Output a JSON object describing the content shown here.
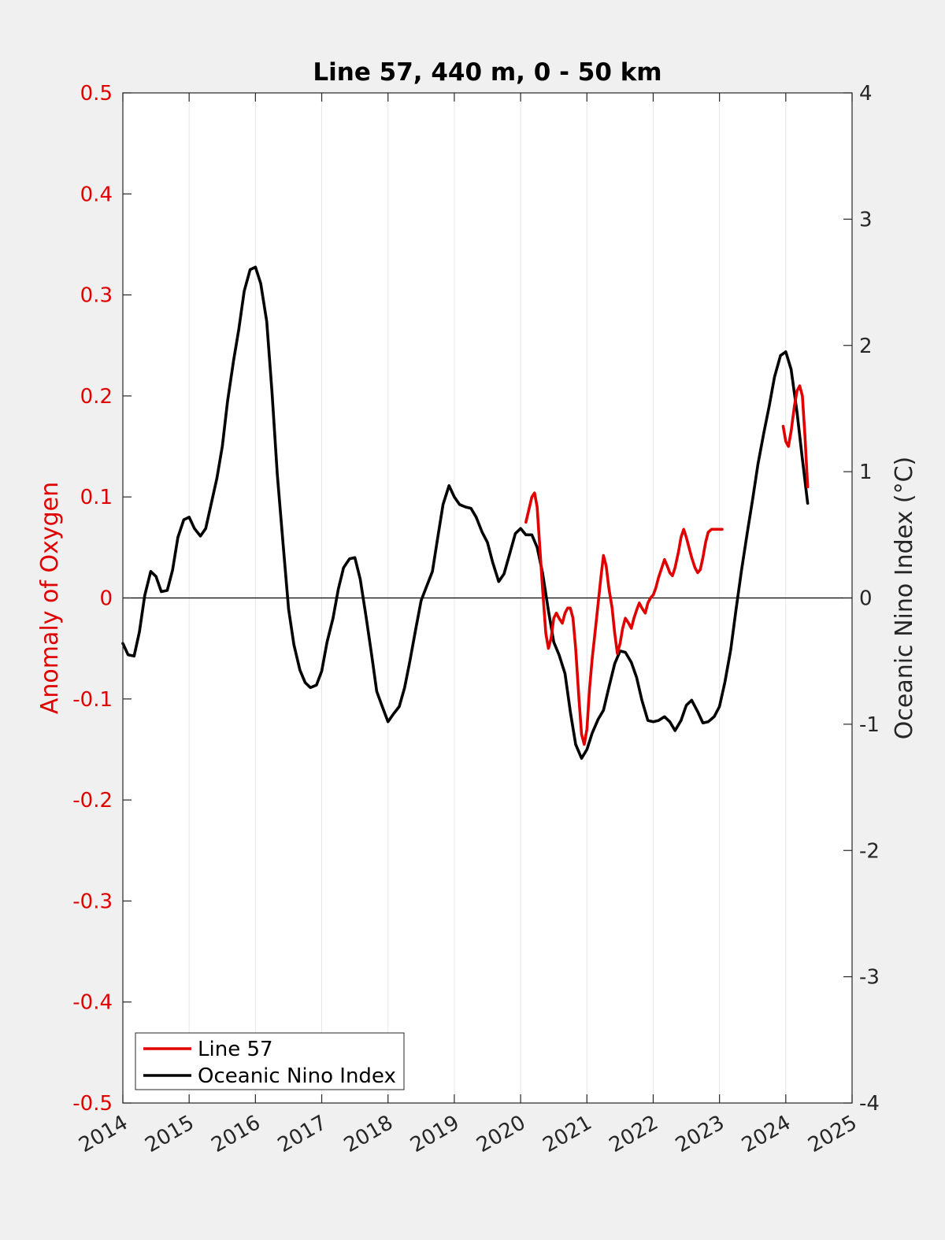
{
  "chart_data": {
    "type": "line",
    "title": "Line 57, 440 m, 0 - 50 km",
    "ylabel_left": "Anomaly of Oxygen",
    "ylabel_right": "Oceanic Nino Index (°C)",
    "xlim": [
      2014,
      2025
    ],
    "ylim_left": [
      -0.5,
      0.5
    ],
    "ylim_right": [
      -4,
      4
    ],
    "x_ticks": [
      "2014",
      "2015",
      "2016",
      "2017",
      "2018",
      "2019",
      "2020",
      "2021",
      "2022",
      "2023",
      "2024",
      "2025"
    ],
    "y_ticks_left": [
      "-0.5",
      "-0.4",
      "-0.3",
      "-0.2",
      "-0.1",
      "0",
      "0.1",
      "0.2",
      "0.3",
      "0.4",
      "0.5"
    ],
    "y_ticks_right": [
      "-4",
      "-3",
      "-2",
      "-1",
      "0",
      "1",
      "2",
      "3",
      "4"
    ],
    "grid": "vertical",
    "legend_position": "bottom-left",
    "colors": {
      "line57": "#e00000",
      "oni": "#000000",
      "left_axis": "#e00000"
    },
    "series": [
      {
        "name": "Line 57",
        "axis": "left",
        "color": "#e00000",
        "segments": [
          {
            "x": [
              2020.08,
              2020.17,
              2020.21,
              2020.25,
              2020.29,
              2020.33,
              2020.38,
              2020.42,
              2020.46,
              2020.5,
              2020.54,
              2020.58,
              2020.63,
              2020.67,
              2020.71,
              2020.75,
              2020.79,
              2020.83,
              2020.88,
              2020.92,
              2020.96,
              2021.0,
              2021.04,
              2021.08,
              2021.13,
              2021.17,
              2021.21,
              2021.25,
              2021.29,
              2021.33,
              2021.38,
              2021.42,
              2021.46,
              2021.5,
              2021.54,
              2021.58,
              2021.63,
              2021.67,
              2021.71,
              2021.75,
              2021.79,
              2021.83,
              2021.88,
              2021.92,
              2021.96,
              2022.0,
              2022.04,
              2022.08,
              2022.13,
              2022.17,
              2022.21,
              2022.25,
              2022.29,
              2022.33,
              2022.38,
              2022.42,
              2022.46,
              2022.5,
              2022.54,
              2022.58,
              2022.63,
              2022.67,
              2022.71,
              2022.75,
              2022.79,
              2022.83,
              2022.88,
              2022.92,
              2022.96,
              2023.0,
              2023.04
            ],
            "y": [
              0.075,
              0.1,
              0.104,
              0.09,
              0.05,
              0.01,
              -0.035,
              -0.05,
              -0.04,
              -0.02,
              -0.015,
              -0.02,
              -0.025,
              -0.015,
              -0.01,
              -0.01,
              -0.02,
              -0.05,
              -0.1,
              -0.135,
              -0.145,
              -0.13,
              -0.09,
              -0.06,
              -0.03,
              -0.005,
              0.02,
              0.042,
              0.032,
              0.01,
              -0.01,
              -0.035,
              -0.055,
              -0.045,
              -0.03,
              -0.02,
              -0.025,
              -0.03,
              -0.02,
              -0.012,
              -0.005,
              -0.01,
              -0.015,
              -0.005,
              0.0,
              0.003,
              0.01,
              0.02,
              0.03,
              0.038,
              0.032,
              0.025,
              0.022,
              0.03,
              0.045,
              0.06,
              0.068,
              0.06,
              0.05,
              0.04,
              0.03,
              0.025,
              0.028,
              0.04,
              0.055,
              0.065,
              0.068,
              0.068,
              0.068,
              0.068,
              0.068
            ]
          },
          {
            "x": [
              2023.96,
              2024.0,
              2024.04,
              2024.08,
              2024.13,
              2024.17,
              2024.21,
              2024.25,
              2024.29,
              2024.33
            ],
            "y": [
              0.17,
              0.155,
              0.15,
              0.165,
              0.19,
              0.205,
              0.21,
              0.2,
              0.16,
              0.11
            ]
          }
        ]
      },
      {
        "name": "Oceanic Nino Index",
        "axis": "right",
        "color": "#000000",
        "segments": [
          {
            "x": [
              2014.0,
              2014.08,
              2014.17,
              2014.25,
              2014.33,
              2014.42,
              2014.5,
              2014.58,
              2014.67,
              2014.75,
              2014.83,
              2014.92,
              2015.0,
              2015.08,
              2015.17,
              2015.25,
              2015.33,
              2015.42,
              2015.5,
              2015.58,
              2015.67,
              2015.75,
              2015.83,
              2015.92,
              2016.0,
              2016.08,
              2016.17,
              2016.25,
              2016.33,
              2016.42,
              2016.5,
              2016.58,
              2016.67,
              2016.75,
              2016.83,
              2016.92,
              2017.0,
              2017.08,
              2017.17,
              2017.25,
              2017.33,
              2017.42,
              2017.5,
              2017.58,
              2017.67,
              2017.75,
              2017.83,
              2017.92,
              2018.0,
              2018.08,
              2018.17,
              2018.25,
              2018.33,
              2018.42,
              2018.5,
              2018.58,
              2018.67,
              2018.75,
              2018.83,
              2018.92,
              2019.0,
              2019.08,
              2019.17,
              2019.25,
              2019.33,
              2019.42,
              2019.5,
              2019.58,
              2019.67,
              2019.75,
              2019.83,
              2019.92,
              2020.0,
              2020.08,
              2020.17,
              2020.25,
              2020.33,
              2020.42,
              2020.5,
              2020.58,
              2020.67,
              2020.75,
              2020.83,
              2020.92,
              2021.0,
              2021.08,
              2021.17,
              2021.25,
              2021.33,
              2021.42,
              2021.5,
              2021.58,
              2021.67,
              2021.75,
              2021.83,
              2021.92,
              2022.0,
              2022.08,
              2022.17,
              2022.25,
              2022.33,
              2022.42,
              2022.5,
              2022.58,
              2022.67,
              2022.75,
              2022.83,
              2022.92,
              2023.0,
              2023.08,
              2023.17,
              2023.25,
              2023.33,
              2023.42,
              2023.5,
              2023.58,
              2023.67,
              2023.75,
              2023.83,
              2023.92,
              2024.0,
              2024.08,
              2024.17,
              2024.25,
              2024.33
            ],
            "y": [
              -0.36,
              -0.45,
              -0.46,
              -0.27,
              0.02,
              0.21,
              0.17,
              0.05,
              0.06,
              0.22,
              0.48,
              0.62,
              0.64,
              0.55,
              0.49,
              0.55,
              0.74,
              0.95,
              1.2,
              1.56,
              1.88,
              2.13,
              2.43,
              2.6,
              2.62,
              2.49,
              2.19,
              1.63,
              0.98,
              0.41,
              -0.09,
              -0.37,
              -0.57,
              -0.67,
              -0.71,
              -0.69,
              -0.58,
              -0.35,
              -0.16,
              0.07,
              0.24,
              0.31,
              0.32,
              0.15,
              -0.15,
              -0.44,
              -0.74,
              -0.87,
              -0.98,
              -0.92,
              -0.86,
              -0.71,
              -0.5,
              -0.24,
              -0.02,
              0.09,
              0.21,
              0.48,
              0.74,
              0.89,
              0.8,
              0.74,
              0.72,
              0.71,
              0.64,
              0.52,
              0.44,
              0.28,
              0.13,
              0.19,
              0.34,
              0.51,
              0.55,
              0.5,
              0.5,
              0.4,
              0.2,
              -0.1,
              -0.35,
              -0.45,
              -0.6,
              -0.9,
              -1.16,
              -1.27,
              -1.2,
              -1.07,
              -0.96,
              -0.89,
              -0.71,
              -0.52,
              -0.42,
              -0.43,
              -0.51,
              -0.63,
              -0.81,
              -0.97,
              -0.98,
              -0.97,
              -0.94,
              -0.98,
              -1.05,
              -0.97,
              -0.85,
              -0.81,
              -0.9,
              -0.99,
              -0.98,
              -0.94,
              -0.86,
              -0.67,
              -0.41,
              -0.09,
              0.21,
              0.52,
              0.78,
              1.06,
              1.31,
              1.52,
              1.75,
              1.92,
              1.95,
              1.81,
              1.47,
              1.1,
              0.75
            ]
          }
        ]
      }
    ]
  }
}
